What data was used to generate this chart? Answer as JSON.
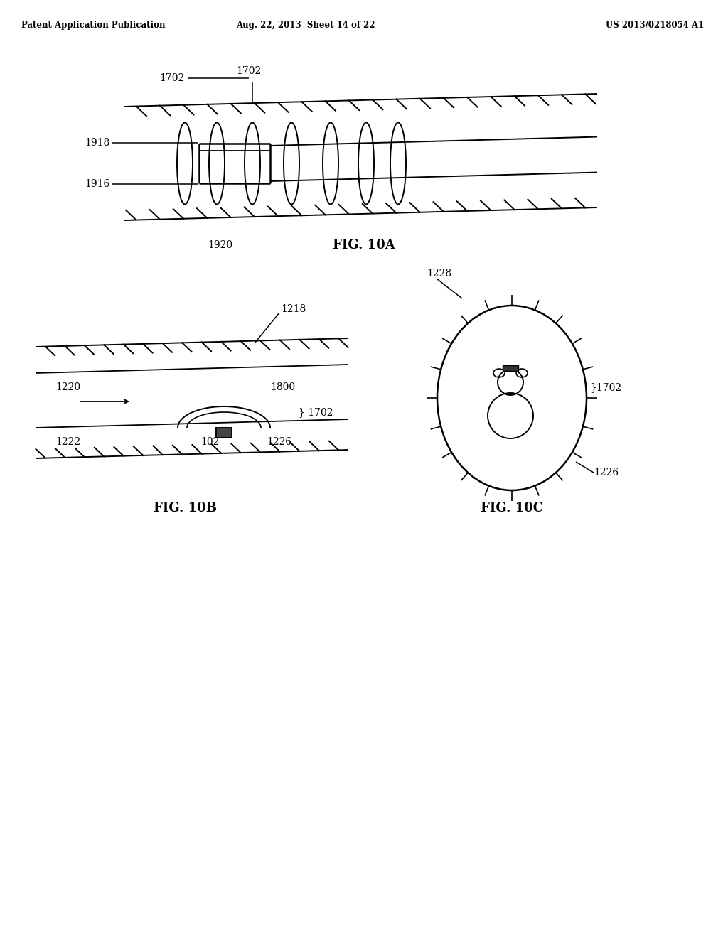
{
  "bg_color": "#ffffff",
  "line_color": "#000000",
  "header_left": "Patent Application Publication",
  "header_mid": "Aug. 22, 2013  Sheet 14 of 22",
  "header_right": "US 2013/0218054 A1",
  "fig10a_label": "FIG. 10A",
  "fig10b_label": "FIG. 10B",
  "fig10c_label": "FIG. 10C",
  "label_1702_10a": "1702",
  "label_1918": "1918",
  "label_1916": "1916",
  "label_1920": "1920",
  "label_1218": "1218",
  "label_1800": "1800",
  "label_1702_10b": "1702",
  "label_1220": "1220",
  "label_1222": "1222",
  "label_102": "102",
  "label_1226_10b": "1226",
  "label_1228": "1228",
  "label_1702_10c": "1702",
  "label_1226_10c": "1226"
}
